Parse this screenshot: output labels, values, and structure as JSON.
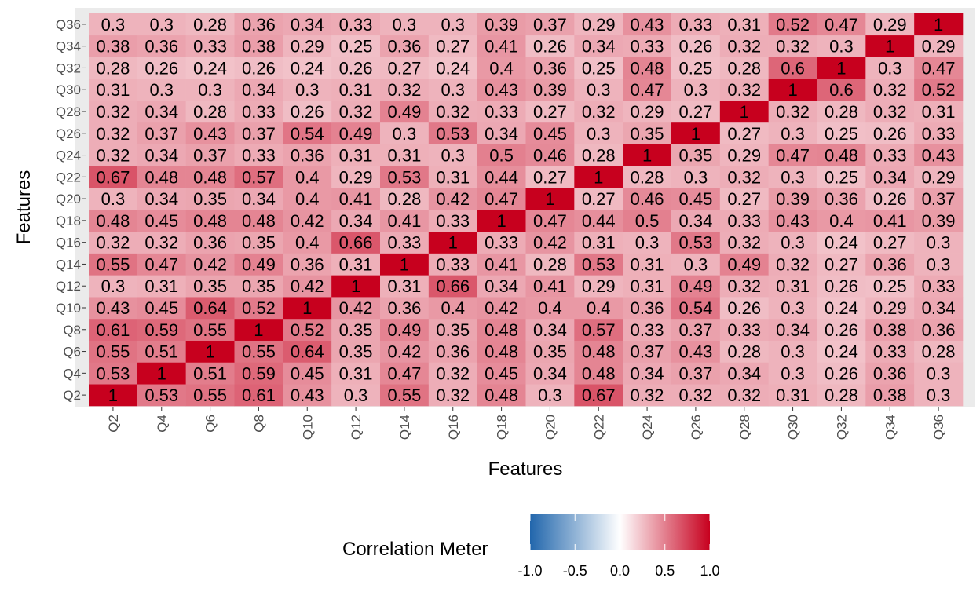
{
  "chart_data": {
    "type": "heatmap",
    "title": "",
    "xlabel": "Features",
    "ylabel": "Features",
    "categories": [
      "Q2",
      "Q4",
      "Q6",
      "Q8",
      "Q10",
      "Q12",
      "Q14",
      "Q16",
      "Q18",
      "Q20",
      "Q22",
      "Q24",
      "Q26",
      "Q28",
      "Q30",
      "Q32",
      "Q34",
      "Q36"
    ],
    "values": [
      [
        1,
        0.53,
        0.55,
        0.61,
        0.43,
        0.3,
        0.55,
        0.32,
        0.48,
        0.3,
        0.67,
        0.32,
        0.32,
        0.32,
        0.31,
        0.28,
        0.38,
        0.3
      ],
      [
        0.53,
        1,
        0.51,
        0.59,
        0.45,
        0.31,
        0.47,
        0.32,
        0.45,
        0.34,
        0.48,
        0.34,
        0.37,
        0.34,
        0.3,
        0.26,
        0.36,
        0.3
      ],
      [
        0.55,
        0.51,
        1,
        0.55,
        0.64,
        0.35,
        0.42,
        0.36,
        0.48,
        0.35,
        0.48,
        0.37,
        0.43,
        0.28,
        0.3,
        0.24,
        0.33,
        0.28
      ],
      [
        0.61,
        0.59,
        0.55,
        1,
        0.52,
        0.35,
        0.49,
        0.35,
        0.48,
        0.34,
        0.57,
        0.33,
        0.37,
        0.33,
        0.34,
        0.26,
        0.38,
        0.36
      ],
      [
        0.43,
        0.45,
        0.64,
        0.52,
        1,
        0.42,
        0.36,
        0.4,
        0.42,
        0.4,
        0.4,
        0.36,
        0.54,
        0.26,
        0.3,
        0.24,
        0.29,
        0.34
      ],
      [
        0.3,
        0.31,
        0.35,
        0.35,
        0.42,
        1,
        0.31,
        0.66,
        0.34,
        0.41,
        0.29,
        0.31,
        0.49,
        0.32,
        0.31,
        0.26,
        0.25,
        0.33
      ],
      [
        0.55,
        0.47,
        0.42,
        0.49,
        0.36,
        0.31,
        1,
        0.33,
        0.41,
        0.28,
        0.53,
        0.31,
        0.3,
        0.49,
        0.32,
        0.27,
        0.36,
        0.3
      ],
      [
        0.32,
        0.32,
        0.36,
        0.35,
        0.4,
        0.66,
        0.33,
        1,
        0.33,
        0.42,
        0.31,
        0.3,
        0.53,
        0.32,
        0.3,
        0.24,
        0.27,
        0.3
      ],
      [
        0.48,
        0.45,
        0.48,
        0.48,
        0.42,
        0.34,
        0.41,
        0.33,
        1,
        0.47,
        0.44,
        0.5,
        0.34,
        0.33,
        0.43,
        0.4,
        0.41,
        0.39
      ],
      [
        0.3,
        0.34,
        0.35,
        0.34,
        0.4,
        0.41,
        0.28,
        0.42,
        0.47,
        1,
        0.27,
        0.46,
        0.45,
        0.27,
        0.39,
        0.36,
        0.26,
        0.37
      ],
      [
        0.67,
        0.48,
        0.48,
        0.57,
        0.4,
        0.29,
        0.53,
        0.31,
        0.44,
        0.27,
        1,
        0.28,
        0.3,
        0.32,
        0.3,
        0.25,
        0.34,
        0.29
      ],
      [
        0.32,
        0.34,
        0.37,
        0.33,
        0.36,
        0.31,
        0.31,
        0.3,
        0.5,
        0.46,
        0.28,
        1,
        0.35,
        0.29,
        0.47,
        0.48,
        0.33,
        0.43
      ],
      [
        0.32,
        0.37,
        0.43,
        0.37,
        0.54,
        0.49,
        0.3,
        0.53,
        0.34,
        0.45,
        0.3,
        0.35,
        1,
        0.27,
        0.3,
        0.25,
        0.26,
        0.33
      ],
      [
        0.32,
        0.34,
        0.28,
        0.33,
        0.26,
        0.32,
        0.49,
        0.32,
        0.33,
        0.27,
        0.32,
        0.29,
        0.27,
        1,
        0.32,
        0.28,
        0.32,
        0.31
      ],
      [
        0.31,
        0.3,
        0.3,
        0.34,
        0.3,
        0.31,
        0.32,
        0.3,
        0.43,
        0.39,
        0.3,
        0.47,
        0.3,
        0.32,
        1,
        0.6,
        0.32,
        0.52
      ],
      [
        0.28,
        0.26,
        0.24,
        0.26,
        0.24,
        0.26,
        0.27,
        0.24,
        0.4,
        0.36,
        0.25,
        0.48,
        0.25,
        0.28,
        0.6,
        1,
        0.3,
        0.47
      ],
      [
        0.38,
        0.36,
        0.33,
        0.38,
        0.29,
        0.25,
        0.36,
        0.27,
        0.41,
        0.26,
        0.34,
        0.33,
        0.26,
        0.32,
        0.32,
        0.3,
        1,
        0.29
      ],
      [
        0.3,
        0.3,
        0.28,
        0.36,
        0.34,
        0.33,
        0.3,
        0.3,
        0.39,
        0.37,
        0.29,
        0.43,
        0.33,
        0.31,
        0.52,
        0.47,
        0.29,
        1
      ]
    ],
    "colorscale": {
      "low": "#2166ac",
      "mid": "#ffffff",
      "high": "#c7001e"
    },
    "legend": {
      "title": "Correlation Meter",
      "position": "bottom",
      "range": [
        -1,
        1
      ],
      "ticks": [
        -1.0,
        -0.5,
        0.0,
        0.5,
        1.0
      ],
      "tick_labels": [
        "-1.0",
        "-0.5",
        "0.0",
        "0.5",
        "1.0"
      ]
    },
    "panel_background": "#ebebeb"
  }
}
